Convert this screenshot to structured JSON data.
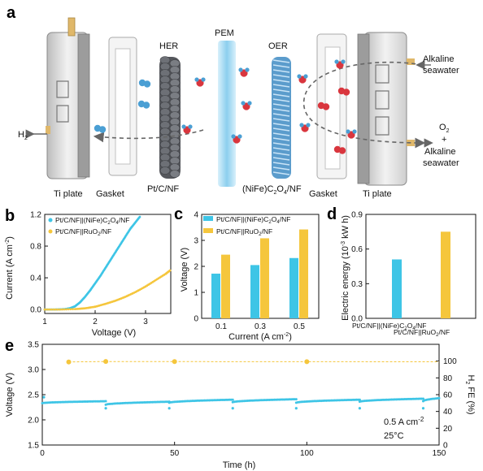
{
  "schematic": {
    "panel_letter": "a",
    "labels": {
      "her": "HER",
      "pem": "PEM",
      "oer": "OER",
      "cathode": "Pt/C/NF",
      "anode": "(NiFe)C",
      "anode_sub2": "2",
      "anode_mid": "O",
      "anode_sub4": "4",
      "anode_tail": "/NF",
      "ti_plate_left": "Ti plate",
      "gasket_left": "Gasket",
      "gasket_right": "Gasket",
      "ti_plate_right": "Ti plate",
      "h2": "H",
      "h2_sub": "2",
      "inlet_line1": "Alkaline",
      "inlet_line2": "seawater",
      "outlet_o2": "O",
      "outlet_o2_sub": "2",
      "outlet_plus": "+",
      "outlet_line1": "Alkaline",
      "outlet_line2": "seawater"
    },
    "colors": {
      "h_atom": "#4a9fd4",
      "o_atom": "#d9363e",
      "membrane": "#9fd6f2",
      "plate": "#d8d8d8",
      "rod": "#e0b86a"
    }
  },
  "chart_data": [
    {
      "panel": "b",
      "type": "scatter",
      "xlabel": "Voltage (V)",
      "ylabel": "Current (A cm",
      "ylabel_sup": "-2",
      "ylabel_tail": ")",
      "xlim": [
        1,
        3.5
      ],
      "ylim": [
        -0.05,
        1.2
      ],
      "xticks": [
        "1",
        "2",
        "3"
      ],
      "yticks": [
        "0.0",
        "0.4",
        "0.8",
        "1.2"
      ],
      "series": [
        {
          "name": "Pt/C/NF||(NiFe)C2O4/NF",
          "name_parts": [
            "Pt/C/NF||(NiFe)C",
            "2",
            "O",
            "4",
            "/NF"
          ],
          "color": "#3ec5e6",
          "x": [
            1.0,
            1.2,
            1.4,
            1.5,
            1.6,
            1.7,
            1.8,
            1.9,
            2.0,
            2.1,
            2.2,
            2.3,
            2.4,
            2.5,
            2.6,
            2.7,
            2.8,
            2.9
          ],
          "y": [
            0.0,
            0.0,
            0.005,
            0.015,
            0.04,
            0.09,
            0.16,
            0.24,
            0.33,
            0.42,
            0.52,
            0.62,
            0.72,
            0.82,
            0.92,
            1.02,
            1.1,
            1.18
          ]
        },
        {
          "name": "Pt/C/NF||RuO2/NF",
          "name_parts": [
            "Pt/C/NF||RuO",
            "2",
            "/NF"
          ],
          "color": "#f5c63c",
          "x": [
            1.0,
            1.3,
            1.6,
            1.8,
            2.0,
            2.2,
            2.4,
            2.6,
            2.8,
            3.0,
            3.2,
            3.4,
            3.5
          ],
          "y": [
            0.0,
            0.0,
            0.005,
            0.015,
            0.035,
            0.07,
            0.11,
            0.16,
            0.22,
            0.29,
            0.37,
            0.45,
            0.5
          ]
        }
      ]
    },
    {
      "panel": "c",
      "type": "bar",
      "xlabel": "Current (A cm",
      "xlabel_sup": "-2",
      "xlabel_tail": ")",
      "ylabel": "Voltage (V)",
      "ylim": [
        0,
        4
      ],
      "yticks": [
        "0",
        "1",
        "2",
        "3",
        "4"
      ],
      "categories": [
        "0.1",
        "0.3",
        "0.5"
      ],
      "series": [
        {
          "name": "Pt/C/NF||(NiFe)C2O4/NF",
          "name_parts": [
            "Pt/C/NF||(NiFe)C",
            "2",
            "O",
            "4",
            "/NF"
          ],
          "color": "#3ec5e6",
          "values": [
            1.72,
            2.05,
            2.32
          ]
        },
        {
          "name": "Pt/C/NF||RuO2/NF",
          "name_parts": [
            "Pt/C/NF||RuO",
            "2",
            "/NF"
          ],
          "color": "#f5c63c",
          "values": [
            2.45,
            3.08,
            3.42
          ]
        }
      ]
    },
    {
      "panel": "d",
      "type": "bar",
      "ylabel": "Electric energy (10",
      "ylabel_sup": "-3",
      "ylabel_tail": " kW h)",
      "ylim": [
        0,
        0.9
      ],
      "yticks": [
        "0.0",
        "0.3",
        "0.6",
        "0.9"
      ],
      "categories": [
        "Pt/C/NF||(NiFe)C2O4/NF",
        "Pt/C/NF||RuO2/NF"
      ],
      "category_parts": [
        [
          "Pt/C/NF||(NiFe)C",
          "2",
          "O",
          "4",
          "/NF"
        ],
        [
          "Pt/C/NF||RuO",
          "2",
          "/NF"
        ]
      ],
      "colors": [
        "#3ec5e6",
        "#f5c63c"
      ],
      "values": [
        0.51,
        0.75
      ]
    },
    {
      "panel": "e",
      "type": "line",
      "xlabel": "Time (h)",
      "ylabel": "Voltage (V)",
      "ylabel_right": "H",
      "ylabel_right_sub": "2",
      "ylabel_right_tail": " FE (%)",
      "xlim": [
        0,
        150
      ],
      "ylim": [
        1.5,
        3.5
      ],
      "ylim_right": [
        0,
        120
      ],
      "xticks": [
        "0",
        "50",
        "100",
        "150"
      ],
      "yticks": [
        "1.5",
        "2.0",
        "2.5",
        "3.0",
        "3.5"
      ],
      "yticks_right": [
        "0",
        "20",
        "40",
        "60",
        "80",
        "100"
      ],
      "annotation_current": "0.5 A cm",
      "annotation_current_sup": "-2",
      "annotation_temp": "25°C",
      "series": [
        {
          "name": "Voltage",
          "color": "#3ec5e6",
          "segments": [
            [
              0,
              24,
              2.33,
              2.37
            ],
            [
              24,
              48,
              2.3,
              2.36
            ],
            [
              48,
              72,
              2.34,
              2.4
            ],
            [
              72,
              96,
              2.35,
              2.41
            ],
            [
              96,
              120,
              2.34,
              2.4
            ],
            [
              120,
              144,
              2.36,
              2.42
            ],
            [
              144,
              150,
              2.37,
              2.43
            ]
          ],
          "dips": [
            24,
            48,
            72,
            96,
            120,
            144
          ],
          "dip_value": 2.23,
          "start": 2.45
        },
        {
          "name": "H2 FE",
          "color": "#f5c63c",
          "fe_x": [
            10,
            24,
            50,
            100,
            150
          ],
          "fe_y": [
            99,
            99.5,
            99.4,
            99.3,
            99.2
          ]
        }
      ]
    }
  ]
}
